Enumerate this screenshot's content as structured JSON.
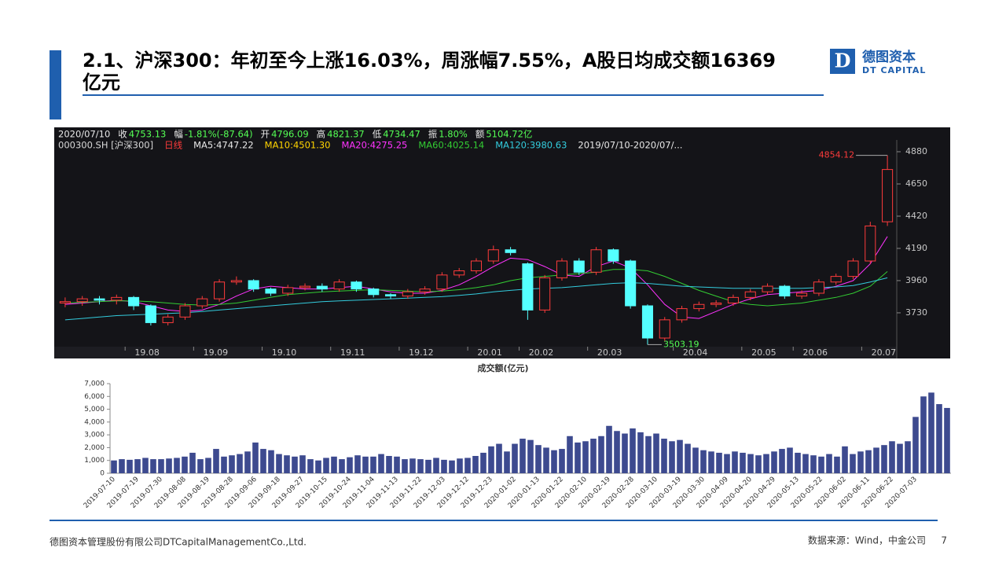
{
  "header": {
    "title_line1": "2.1、沪深300：年初至今上涨16.03%，周涨幅7.55%，A股日均成交额16369",
    "title_line2": "亿元",
    "logo_cn": "德图资本",
    "logo_en": "DT CAPITAL"
  },
  "quote_bar": {
    "date": "2020/07/10",
    "items": [
      {
        "k": "收",
        "v": "4753.13"
      },
      {
        "k": "幅",
        "v": "-1.81%(-87.64)"
      },
      {
        "k": "开",
        "v": "4796.09"
      },
      {
        "k": "高",
        "v": "4821.37"
      },
      {
        "k": "低",
        "v": "4734.47"
      },
      {
        "k": "振",
        "v": "1.80%"
      },
      {
        "k": "额",
        "v": "5104.72亿"
      }
    ],
    "line2": [
      {
        "text": "000300.SH [沪深300]",
        "color": "#d8d8d8"
      },
      {
        "text": "日线",
        "color": "#ff3b3b"
      },
      {
        "text": "MA5:4747.22",
        "color": "#e8e8e8"
      },
      {
        "text": "MA10:4501.30",
        "color": "#ffd400"
      },
      {
        "text": "MA20:4275.25",
        "color": "#ff33ff"
      },
      {
        "text": "MA60:4025.14",
        "color": "#33cc33"
      },
      {
        "text": "MA120:3980.63",
        "color": "#33ccdd"
      },
      {
        "text": "2019/07/10-2020/07/...",
        "color": "#e8e8e8"
      }
    ]
  },
  "chart_data": [
    {
      "type": "candlestick",
      "categories": [
        null,
        null,
        null,
        null,
        "19.08",
        null,
        null,
        null,
        "19.09",
        null,
        null,
        null,
        "19.10",
        null,
        null,
        null,
        "19.11",
        null,
        null,
        null,
        "19.12",
        null,
        null,
        null,
        "20.01",
        null,
        null,
        "20.02",
        null,
        null,
        null,
        "20.03",
        null,
        null,
        null,
        null,
        "20.04",
        null,
        null,
        null,
        "20.05",
        null,
        null,
        "20.06",
        null,
        null,
        null,
        "20.07",
        null
      ],
      "open": [
        3800,
        3810,
        3830,
        3820,
        3840,
        3780,
        3660,
        3700,
        3780,
        3830,
        3950,
        3960,
        3900,
        3870,
        3910,
        3920,
        3900,
        3950,
        3900,
        3860,
        3850,
        3880,
        3900,
        4000,
        4030,
        4100,
        4180,
        4080,
        3750,
        3980,
        4100,
        4020,
        4180,
        4100,
        3780,
        3550,
        3680,
        3760,
        3790,
        3800,
        3840,
        3880,
        3920,
        3850,
        3870,
        3950,
        3990,
        4100,
        4380
      ],
      "high": [
        3840,
        3850,
        3850,
        3860,
        3850,
        3790,
        3720,
        3800,
        3850,
        3970,
        3990,
        3970,
        3910,
        3930,
        3940,
        3940,
        3970,
        3960,
        3910,
        3870,
        3900,
        3920,
        4020,
        4050,
        4120,
        4210,
        4200,
        4090,
        4000,
        4120,
        4120,
        4200,
        4190,
        4110,
        3790,
        3700,
        3780,
        3810,
        3820,
        3860,
        3900,
        3940,
        3930,
        3890,
        3970,
        4010,
        4120,
        4380,
        4854.12
      ],
      "low": [
        3770,
        3780,
        3790,
        3790,
        3750,
        3640,
        3640,
        3680,
        3760,
        3810,
        3930,
        3880,
        3850,
        3850,
        3890,
        3880,
        3880,
        3880,
        3840,
        3830,
        3830,
        3860,
        3880,
        3980,
        4010,
        4080,
        4140,
        3680,
        3730,
        3960,
        4000,
        4000,
        4080,
        3760,
        3503.19,
        3530,
        3660,
        3740,
        3770,
        3780,
        3820,
        3860,
        3830,
        3830,
        3850,
        3930,
        3970,
        4080,
        4350
      ],
      "close": [
        3810,
        3830,
        3820,
        3840,
        3780,
        3660,
        3700,
        3780,
        3830,
        3950,
        3960,
        3900,
        3870,
        3910,
        3920,
        3900,
        3950,
        3900,
        3860,
        3850,
        3880,
        3900,
        4000,
        4030,
        4100,
        4180,
        4160,
        3750,
        3980,
        4100,
        4020,
        4180,
        4100,
        3780,
        3550,
        3680,
        3760,
        3790,
        3800,
        3840,
        3880,
        3920,
        3850,
        3870,
        3950,
        3990,
        4100,
        4350,
        4753.13
      ],
      "up_color": "#ff3b3b",
      "down_color": "#54ffff",
      "lines": [
        {
          "color": "#ff33ff",
          "values": [
            3790,
            3800,
            3810,
            3820,
            3810,
            3780,
            3750,
            3740,
            3750,
            3790,
            3850,
            3900,
            3920,
            3910,
            3900,
            3900,
            3910,
            3920,
            3900,
            3880,
            3870,
            3870,
            3890,
            3930,
            3990,
            4060,
            4120,
            4110,
            4060,
            4000,
            3990,
            4060,
            4100,
            4050,
            3930,
            3790,
            3700,
            3690,
            3740,
            3790,
            3830,
            3860,
            3870,
            3880,
            3890,
            3920,
            3960,
            4080,
            4275
          ]
        },
        {
          "color": "#33cc33",
          "values": [
            3800,
            3805,
            3810,
            3815,
            3815,
            3810,
            3800,
            3790,
            3785,
            3790,
            3800,
            3820,
            3840,
            3860,
            3870,
            3880,
            3885,
            3890,
            3895,
            3890,
            3885,
            3880,
            3885,
            3895,
            3910,
            3930,
            3960,
            3980,
            3990,
            4000,
            4010,
            4020,
            4040,
            4040,
            4030,
            3990,
            3940,
            3890,
            3850,
            3810,
            3790,
            3780,
            3790,
            3800,
            3820,
            3840,
            3870,
            3920,
            4025
          ]
        },
        {
          "color": "#33ccdd",
          "values": [
            3680,
            3690,
            3700,
            3710,
            3715,
            3720,
            3725,
            3730,
            3740,
            3750,
            3760,
            3770,
            3780,
            3790,
            3800,
            3810,
            3815,
            3820,
            3825,
            3830,
            3835,
            3840,
            3845,
            3855,
            3865,
            3880,
            3890,
            3900,
            3905,
            3910,
            3920,
            3930,
            3940,
            3945,
            3940,
            3930,
            3920,
            3915,
            3910,
            3905,
            3905,
            3905,
            3905,
            3905,
            3910,
            3915,
            3925,
            3950,
            3980
          ]
        }
      ],
      "ylim": [
        3494,
        4981
      ],
      "yticks": [
        3730,
        3960,
        4190,
        4420,
        4650,
        4880
      ]
    },
    {
      "type": "bar",
      "title": "成交额(亿元)",
      "color": "#3d4a8f",
      "categories": [
        "2019-07-10",
        null,
        null,
        "2019-07-19",
        null,
        null,
        "2019-07-30",
        null,
        null,
        "2019-08-08",
        null,
        null,
        "2019-08-19",
        null,
        null,
        "2019-08-28",
        null,
        null,
        "2019-09-06",
        null,
        null,
        "2019-09-18",
        null,
        null,
        "2019-09-27",
        null,
        null,
        "2019-10-15",
        null,
        null,
        "2019-10-24",
        null,
        null,
        "2019-11-04",
        null,
        null,
        "2019-11-13",
        null,
        null,
        "2019-11-22",
        null,
        null,
        "2019-12-03",
        null,
        null,
        "2019-12-12",
        null,
        null,
        "2019-12-23",
        null,
        null,
        "2020-01-02",
        null,
        null,
        "2020-01-13",
        null,
        null,
        "2020-01-22",
        null,
        null,
        "2020-02-10",
        null,
        null,
        "2020-02-19",
        null,
        null,
        "2020-02-28",
        null,
        null,
        "2020-03-10",
        null,
        null,
        "2020-03-19",
        null,
        null,
        "2020-03-30",
        null,
        null,
        "2020-04-09",
        null,
        null,
        "2020-04-20",
        null,
        null,
        "2020-04-29",
        null,
        null,
        "2020-05-13",
        null,
        null,
        "2020-05-22",
        null,
        null,
        "2020-06-02",
        null,
        null,
        "2020-06-11",
        null,
        null,
        "2020-06-22",
        null,
        null,
        "2020-07-03",
        null,
        null,
        null,
        null
      ],
      "values": [
        1000,
        1100,
        1050,
        1100,
        1200,
        1100,
        1100,
        1150,
        1200,
        1300,
        1600,
        1100,
        1200,
        1900,
        1300,
        1400,
        1500,
        1700,
        2400,
        1900,
        1800,
        1500,
        1400,
        1300,
        1400,
        1100,
        1000,
        1200,
        1300,
        1100,
        1250,
        1400,
        1300,
        1300,
        1500,
        1350,
        1300,
        1100,
        1150,
        1100,
        1050,
        1200,
        1050,
        1000,
        1150,
        1200,
        1350,
        1600,
        2100,
        2300,
        1700,
        2300,
        2700,
        2600,
        2200,
        2000,
        1800,
        1900,
        2900,
        2400,
        2500,
        2700,
        2900,
        3700,
        3300,
        3100,
        3500,
        3200,
        2900,
        3100,
        2700,
        2500,
        2600,
        2300,
        2000,
        1800,
        1700,
        1600,
        1500,
        1700,
        1600,
        1500,
        1400,
        1500,
        1700,
        1900,
        2000,
        1600,
        1500,
        1400,
        1300,
        1500,
        1300,
        2100,
        1500,
        1700,
        1800,
        2000,
        2200,
        2500,
        2300,
        2500,
        4400,
        6000,
        6300,
        5400,
        5100
      ],
      "ylim": [
        0,
        7000
      ],
      "yticks": [
        {
          "value": 0,
          "label": "0"
        },
        {
          "value": 1000,
          "label": "1,000"
        },
        {
          "value": 2000,
          "label": "2,000"
        },
        {
          "value": 3000,
          "label": "3,000"
        },
        {
          "value": 4000,
          "label": "4,000"
        },
        {
          "value": 5000,
          "label": "5,000"
        },
        {
          "value": 6000,
          "label": "6,000"
        },
        {
          "value": 7000,
          "label": "7,000"
        }
      ]
    }
  ],
  "footer": {
    "company": "德图资本管理股份有限公司DTCapitalManagementCo.,Ltd.",
    "source": "数据来源：Wind，中金公司",
    "page": "7"
  }
}
